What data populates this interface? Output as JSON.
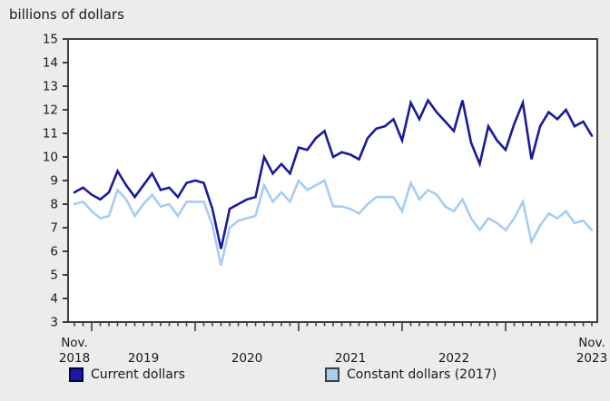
{
  "title": "billions of dollars",
  "chart_data": {
    "type": "line",
    "title": "billions of dollars",
    "ylabel": "",
    "xlabel": "",
    "ylim": [
      3,
      15
    ],
    "ytick_step": 1,
    "grid": false,
    "legend_position": "bottom",
    "x_frequency": "monthly",
    "n_points": 61,
    "x_start_label": "Nov. 2018",
    "x_end_label": "Nov. 2023",
    "x_tick_labels": [
      {
        "lines": [
          "Nov.",
          "2018"
        ],
        "month_index": 0
      },
      {
        "lines": [
          "2019"
        ],
        "month_index": 8
      },
      {
        "lines": [
          "2020"
        ],
        "month_index": 20
      },
      {
        "lines": [
          "2021"
        ],
        "month_index": 32
      },
      {
        "lines": [
          "2022"
        ],
        "month_index": 44
      },
      {
        "lines": [
          "Nov.",
          "2023"
        ],
        "month_index": 60
      }
    ],
    "series": [
      {
        "name": "Current dollars",
        "color": "#1a1a9c",
        "swatch_border": "#00004d",
        "values": [
          8.5,
          8.7,
          8.4,
          8.2,
          8.5,
          9.4,
          8.8,
          8.3,
          8.8,
          9.3,
          8.6,
          8.7,
          8.3,
          8.9,
          9.0,
          8.9,
          7.8,
          6.1,
          7.8,
          8.0,
          8.2,
          8.3,
          10.0,
          9.3,
          9.7,
          9.3,
          10.4,
          10.3,
          10.8,
          11.1,
          10.0,
          10.2,
          10.1,
          9.9,
          10.8,
          11.2,
          11.3,
          11.6,
          10.7,
          12.3,
          11.6,
          12.4,
          11.9,
          11.5,
          11.1,
          12.4,
          10.6,
          9.7,
          11.3,
          10.7,
          10.3,
          11.4,
          12.3,
          9.9,
          11.3,
          11.9,
          11.6,
          12.0,
          11.3,
          11.5,
          10.9
        ]
      },
      {
        "name": "Constant dollars (2017)",
        "color": "#a6cdf2",
        "swatch_border": "#404040",
        "values": [
          8.0,
          8.1,
          7.7,
          7.4,
          7.5,
          8.6,
          8.2,
          7.5,
          8.0,
          8.4,
          7.9,
          8.0,
          7.5,
          8.1,
          8.1,
          8.1,
          7.1,
          5.4,
          7.0,
          7.3,
          7.4,
          7.5,
          8.8,
          8.1,
          8.5,
          8.1,
          9.0,
          8.6,
          8.8,
          9.0,
          7.9,
          7.9,
          7.8,
          7.6,
          8.0,
          8.3,
          8.3,
          8.3,
          7.7,
          8.9,
          8.2,
          8.6,
          8.4,
          7.9,
          7.7,
          8.2,
          7.4,
          6.9,
          7.4,
          7.2,
          6.9,
          7.4,
          8.1,
          6.4,
          7.1,
          7.6,
          7.4,
          7.7,
          7.2,
          7.3,
          6.9
        ]
      }
    ],
    "colors": {
      "background": "#ececec",
      "plot_background": "#ffffff",
      "frame": "#3f3f3f",
      "text": "#1a1a1a"
    }
  }
}
